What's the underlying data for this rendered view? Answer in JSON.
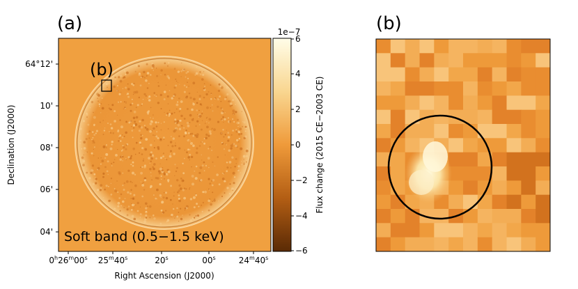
{
  "panel_a": {
    "label": "(a)",
    "inset_label": "(b)",
    "band_label": "Soft band (0.5−1.5 keV)",
    "y_axis_label": "Declination (J2000)",
    "x_axis_label": "Right Ascension (J2000)",
    "y_ticks": [
      "64°12'",
      "10'",
      "08'",
      "06'",
      "04'"
    ],
    "x_ticks": [
      {
        "main": "0",
        "sup": "h",
        "main2": "26",
        "sup2": "m",
        "main3": "00",
        "sup3": "s"
      },
      {
        "main": "25",
        "sup": "m",
        "main2": "40",
        "sup2": "s"
      },
      {
        "main": "20",
        "sup": "s"
      },
      {
        "main": "00",
        "sup": "s"
      },
      {
        "main": "24",
        "sup": "m",
        "main2": "40",
        "sup2": "s"
      }
    ]
  },
  "colorbar": {
    "scale_label": "1e−7",
    "ticks": [
      "6",
      "4",
      "2",
      "0",
      "−2",
      "−4",
      "−6"
    ],
    "label": "Flux change (2015 CE−2003 CE)"
  },
  "panel_b": {
    "label": "(b)"
  },
  "colors": {
    "background_map": "#f0a040",
    "cbar_top": "#fffde8",
    "cbar_mid": "#ef9a3a",
    "cbar_bottom": "#5a2a05"
  }
}
